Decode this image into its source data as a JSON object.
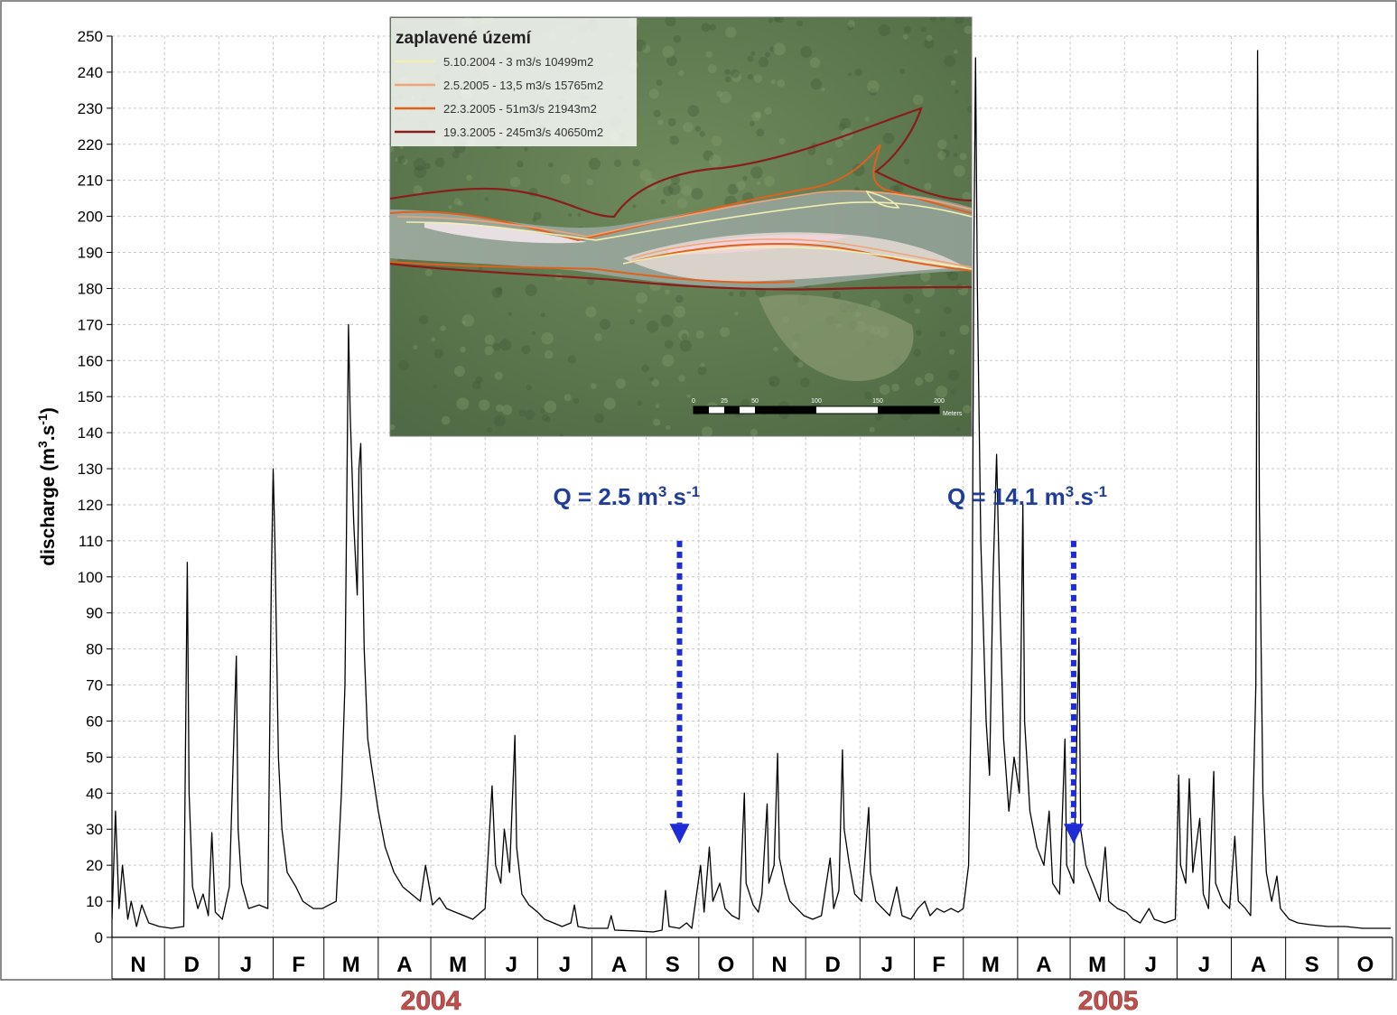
{
  "chart_data": {
    "type": "line",
    "title": "",
    "xlabel": "",
    "ylabel": "discharge (m³.s⁻¹)",
    "ylabel_parts": {
      "main": "discharge (m",
      "sup1": "3",
      "mid": ".s",
      "sup2": "-1",
      "end": ")"
    },
    "ylim": [
      0,
      250
    ],
    "yticks": [
      0,
      10,
      20,
      30,
      40,
      50,
      60,
      70,
      80,
      90,
      100,
      110,
      120,
      130,
      140,
      150,
      160,
      170,
      180,
      190,
      200,
      210,
      220,
      230,
      240,
      250
    ],
    "months": [
      "N",
      "D",
      "J",
      "F",
      "M",
      "A",
      "M",
      "J",
      "J",
      "A",
      "S",
      "O",
      "N",
      "D",
      "J",
      "F",
      "M",
      "A",
      "M",
      "J",
      "J",
      "A",
      "S",
      "O"
    ],
    "x_start": "2003-11-01",
    "x_end": "2005-10-31",
    "grid": true,
    "year_labels": [
      {
        "text": "2004",
        "month_index": 6
      },
      {
        "text": "2005",
        "month_index": 18.7
      }
    ],
    "annotations": [
      {
        "q": "Q = 2.5 m",
        "sup1": "3",
        "mid": ".s",
        "sup2": "-1",
        "x_date": "2004-09-20",
        "y_from": 110,
        "y_to": 28
      },
      {
        "q": "Q = 14.1 m",
        "sup1": "3",
        "mid": ".s",
        "sup2": "-1",
        "x_date": "2005-05-03",
        "y_from": 110,
        "y_to": 28
      }
    ],
    "series": [
      {
        "color": "#000000",
        "keypoints": [
          [
            "2003-11-01",
            5
          ],
          [
            "2003-11-03",
            35
          ],
          [
            "2003-11-05",
            8
          ],
          [
            "2003-11-07",
            20
          ],
          [
            "2003-11-10",
            5
          ],
          [
            "2003-11-12",
            10
          ],
          [
            "2003-11-15",
            3
          ],
          [
            "2003-11-18",
            9
          ],
          [
            "2003-11-22",
            4
          ],
          [
            "2003-11-28",
            3
          ],
          [
            "2003-12-05",
            2.5
          ],
          [
            "2003-12-12",
            3
          ],
          [
            "2003-12-14",
            104
          ],
          [
            "2003-12-15",
            40
          ],
          [
            "2003-12-17",
            14
          ],
          [
            "2003-12-20",
            8
          ],
          [
            "2003-12-23",
            12
          ],
          [
            "2003-12-26",
            6
          ],
          [
            "2003-12-28",
            29
          ],
          [
            "2003-12-30",
            7
          ],
          [
            "2004-01-03",
            5
          ],
          [
            "2004-01-07",
            14
          ],
          [
            "2004-01-11",
            78
          ],
          [
            "2004-01-12",
            30
          ],
          [
            "2004-01-14",
            15
          ],
          [
            "2004-01-18",
            8
          ],
          [
            "2004-01-24",
            9
          ],
          [
            "2004-01-29",
            8
          ],
          [
            "2004-01-31",
            100
          ],
          [
            "2004-02-01",
            130
          ],
          [
            "2004-02-02",
            110
          ],
          [
            "2004-02-04",
            50
          ],
          [
            "2004-02-06",
            30
          ],
          [
            "2004-02-09",
            18
          ],
          [
            "2004-02-14",
            14
          ],
          [
            "2004-02-18",
            10
          ],
          [
            "2004-02-24",
            8
          ],
          [
            "2004-02-29",
            8
          ],
          [
            "2004-03-04",
            9
          ],
          [
            "2004-03-08",
            10
          ],
          [
            "2004-03-11",
            40
          ],
          [
            "2004-03-13",
            70
          ],
          [
            "2004-03-15",
            170
          ],
          [
            "2004-03-16",
            145
          ],
          [
            "2004-03-18",
            115
          ],
          [
            "2004-03-20",
            95
          ],
          [
            "2004-03-21",
            130
          ],
          [
            "2004-03-22",
            137
          ],
          [
            "2004-03-24",
            80
          ],
          [
            "2004-03-26",
            55
          ],
          [
            "2004-03-28",
            48
          ],
          [
            "2004-04-01",
            35
          ],
          [
            "2004-04-05",
            25
          ],
          [
            "2004-04-10",
            18
          ],
          [
            "2004-04-15",
            14
          ],
          [
            "2004-04-20",
            12
          ],
          [
            "2004-04-25",
            10
          ],
          [
            "2004-04-28",
            20
          ],
          [
            "2004-05-02",
            9
          ],
          [
            "2004-05-06",
            11
          ],
          [
            "2004-05-10",
            8
          ],
          [
            "2004-05-15",
            7
          ],
          [
            "2004-05-20",
            6
          ],
          [
            "2004-05-25",
            5
          ],
          [
            "2004-06-01",
            8
          ],
          [
            "2004-06-05",
            42
          ],
          [
            "2004-06-07",
            20
          ],
          [
            "2004-06-10",
            15
          ],
          [
            "2004-06-12",
            30
          ],
          [
            "2004-06-15",
            18
          ],
          [
            "2004-06-18",
            56
          ],
          [
            "2004-06-19",
            25
          ],
          [
            "2004-06-22",
            12
          ],
          [
            "2004-06-26",
            9
          ],
          [
            "2004-07-01",
            7
          ],
          [
            "2004-07-05",
            5
          ],
          [
            "2004-07-10",
            4
          ],
          [
            "2004-07-15",
            3
          ],
          [
            "2004-07-20",
            4
          ],
          [
            "2004-07-22",
            9
          ],
          [
            "2004-07-24",
            3
          ],
          [
            "2004-07-30",
            2.5
          ],
          [
            "2004-08-10",
            2.5
          ],
          [
            "2004-08-12",
            6
          ],
          [
            "2004-08-14",
            2
          ],
          [
            "2004-08-25",
            1.8
          ],
          [
            "2004-09-05",
            1.5
          ],
          [
            "2004-09-10",
            2
          ],
          [
            "2004-09-12",
            13
          ],
          [
            "2004-09-14",
            3
          ],
          [
            "2004-09-20",
            2.5
          ],
          [
            "2004-09-24",
            4
          ],
          [
            "2004-09-27",
            2.5
          ],
          [
            "2004-10-02",
            20
          ],
          [
            "2004-10-04",
            7
          ],
          [
            "2004-10-07",
            25
          ],
          [
            "2004-10-09",
            10
          ],
          [
            "2004-10-13",
            15
          ],
          [
            "2004-10-16",
            8
          ],
          [
            "2004-10-20",
            6
          ],
          [
            "2004-10-24",
            5
          ],
          [
            "2004-10-27",
            40
          ],
          [
            "2004-10-28",
            15
          ],
          [
            "2004-11-01",
            9
          ],
          [
            "2004-11-04",
            7
          ],
          [
            "2004-11-06",
            12
          ],
          [
            "2004-11-09",
            37
          ],
          [
            "2004-11-10",
            15
          ],
          [
            "2004-11-13",
            20
          ],
          [
            "2004-11-15",
            51
          ],
          [
            "2004-11-16",
            22
          ],
          [
            "2004-11-19",
            15
          ],
          [
            "2004-11-22",
            10
          ],
          [
            "2004-11-26",
            8
          ],
          [
            "2004-11-30",
            6
          ],
          [
            "2004-12-05",
            5
          ],
          [
            "2004-12-10",
            6
          ],
          [
            "2004-12-15",
            22
          ],
          [
            "2004-12-17",
            8
          ],
          [
            "2004-12-20",
            13
          ],
          [
            "2004-12-22",
            52
          ],
          [
            "2004-12-23",
            30
          ],
          [
            "2004-12-26",
            20
          ],
          [
            "2004-12-29",
            12
          ],
          [
            "2005-01-02",
            10
          ],
          [
            "2005-01-06",
            36
          ],
          [
            "2005-01-07",
            18
          ],
          [
            "2005-01-10",
            10
          ],
          [
            "2005-01-14",
            8
          ],
          [
            "2005-01-18",
            6
          ],
          [
            "2005-01-22",
            14
          ],
          [
            "2005-01-25",
            6
          ],
          [
            "2005-01-30",
            5
          ],
          [
            "2005-02-03",
            8
          ],
          [
            "2005-02-07",
            10
          ],
          [
            "2005-02-10",
            6
          ],
          [
            "2005-02-14",
            8
          ],
          [
            "2005-02-18",
            7
          ],
          [
            "2005-02-22",
            8
          ],
          [
            "2005-02-26",
            7
          ],
          [
            "2005-03-01",
            8
          ],
          [
            "2005-03-04",
            20
          ],
          [
            "2005-03-06",
            80
          ],
          [
            "2005-03-07",
            190
          ],
          [
            "2005-03-08",
            244
          ],
          [
            "2005-03-09",
            180
          ],
          [
            "2005-03-11",
            110
          ],
          [
            "2005-03-14",
            60
          ],
          [
            "2005-03-16",
            45
          ],
          [
            "2005-03-18",
            100
          ],
          [
            "2005-03-20",
            134
          ],
          [
            "2005-03-22",
            90
          ],
          [
            "2005-03-24",
            55
          ],
          [
            "2005-03-27",
            35
          ],
          [
            "2005-03-30",
            50
          ],
          [
            "2005-04-02",
            40
          ],
          [
            "2005-04-04",
            120
          ],
          [
            "2005-04-05",
            60
          ],
          [
            "2005-04-08",
            35
          ],
          [
            "2005-04-12",
            25
          ],
          [
            "2005-04-16",
            20
          ],
          [
            "2005-04-19",
            35
          ],
          [
            "2005-04-21",
            15
          ],
          [
            "2005-04-25",
            12
          ],
          [
            "2005-04-28",
            55
          ],
          [
            "2005-04-29",
            20
          ],
          [
            "2005-05-03",
            15
          ],
          [
            "2005-05-06",
            83
          ],
          [
            "2005-05-07",
            30
          ],
          [
            "2005-05-10",
            20
          ],
          [
            "2005-05-14",
            15
          ],
          [
            "2005-05-18",
            10
          ],
          [
            "2005-05-21",
            25
          ],
          [
            "2005-05-23",
            10
          ],
          [
            "2005-05-28",
            8
          ],
          [
            "2005-06-02",
            7
          ],
          [
            "2005-06-06",
            5
          ],
          [
            "2005-06-10",
            4
          ],
          [
            "2005-06-15",
            8
          ],
          [
            "2005-06-18",
            5
          ],
          [
            "2005-06-24",
            4
          ],
          [
            "2005-06-30",
            5
          ],
          [
            "2005-07-02",
            45
          ],
          [
            "2005-07-03",
            20
          ],
          [
            "2005-07-06",
            15
          ],
          [
            "2005-07-08",
            44
          ],
          [
            "2005-07-10",
            18
          ],
          [
            "2005-07-14",
            33
          ],
          [
            "2005-07-16",
            12
          ],
          [
            "2005-07-19",
            8
          ],
          [
            "2005-07-22",
            46
          ],
          [
            "2005-07-23",
            15
          ],
          [
            "2005-07-27",
            10
          ],
          [
            "2005-07-31",
            8
          ],
          [
            "2005-08-03",
            28
          ],
          [
            "2005-08-05",
            10
          ],
          [
            "2005-08-09",
            8
          ],
          [
            "2005-08-12",
            6
          ],
          [
            "2005-08-15",
            70
          ],
          [
            "2005-08-16",
            246
          ],
          [
            "2005-08-17",
            120
          ],
          [
            "2005-08-19",
            40
          ],
          [
            "2005-08-21",
            18
          ],
          [
            "2005-08-24",
            10
          ],
          [
            "2005-08-27",
            17
          ],
          [
            "2005-08-29",
            8
          ],
          [
            "2005-09-03",
            5
          ],
          [
            "2005-09-08",
            4
          ],
          [
            "2005-09-15",
            3.5
          ],
          [
            "2005-09-25",
            3
          ],
          [
            "2005-10-05",
            3
          ],
          [
            "2005-10-15",
            2.5
          ],
          [
            "2005-10-31",
            2.5
          ]
        ]
      }
    ]
  },
  "map_inset": {
    "title": "zaplavené území",
    "legend": [
      {
        "label": "5.10.2004 - 3 m3/s 10499m2",
        "color": "#f2efb0"
      },
      {
        "label": "2.5.2005 - 13,5 m3/s 15765m2",
        "color": "#f0a478"
      },
      {
        "label": "22.3.2005 - 51m3/s 21943m2",
        "color": "#e0601c"
      },
      {
        "label": "19.3.2005 - 245m3/s 40650m2",
        "color": "#8b1c1c"
      }
    ],
    "scale_ticks": [
      "0",
      "25",
      "50",
      "100",
      "150",
      "200"
    ],
    "scale_unit": "Meters"
  }
}
